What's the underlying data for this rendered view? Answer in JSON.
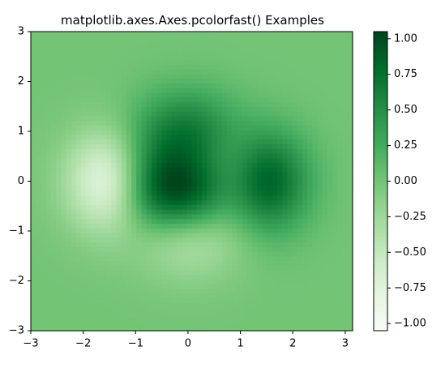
{
  "chart_data": {
    "type": "heatmap",
    "title": "matplotlib.axes.Axes.pcolorfast() Examples",
    "xlabel": "",
    "ylabel": "",
    "xlim": [
      -3,
      3.14159
    ],
    "ylim": [
      -3,
      3
    ],
    "grid": false,
    "colormap": "Greens",
    "cmap_stops": [
      "#f7fcf5",
      "#e5f5e0",
      "#c7e9c0",
      "#a1d99b",
      "#74c476",
      "#41ab5d",
      "#238b45",
      "#006d2c",
      "#00441b"
    ],
    "x_ticks": [
      -3,
      -2,
      -1,
      0,
      1,
      2,
      3
    ],
    "x_tick_labels": [
      "−3",
      "−2",
      "−1",
      "0",
      "1",
      "2",
      "3"
    ],
    "y_ticks": [
      -3,
      -2,
      -1,
      0,
      1,
      2,
      3
    ],
    "y_tick_labels": [
      "−3",
      "−2",
      "−1",
      "0",
      "1",
      "2",
      "3"
    ],
    "colorbar": {
      "vmin": -1.05,
      "vmax": 1.05,
      "ticks": [
        1.0,
        0.75,
        0.5,
        0.25,
        0.0,
        -0.25,
        -0.5,
        -0.75,
        -1.0
      ],
      "tick_labels": [
        "1.00",
        "0.75",
        "0.50",
        "0.25",
        "0.00",
        "−0.25",
        "−0.50",
        "−0.75",
        "−1.00"
      ],
      "placement": "right"
    },
    "features": [
      {
        "x": -0.2,
        "y": 0.1,
        "value": 1.02
      },
      {
        "x": 1.6,
        "y": 0.0,
        "value": 0.75
      },
      {
        "x": -1.7,
        "y": -0.1,
        "value": -0.9
      },
      {
        "x": 0.2,
        "y": -1.4,
        "value": -0.35
      }
    ]
  }
}
